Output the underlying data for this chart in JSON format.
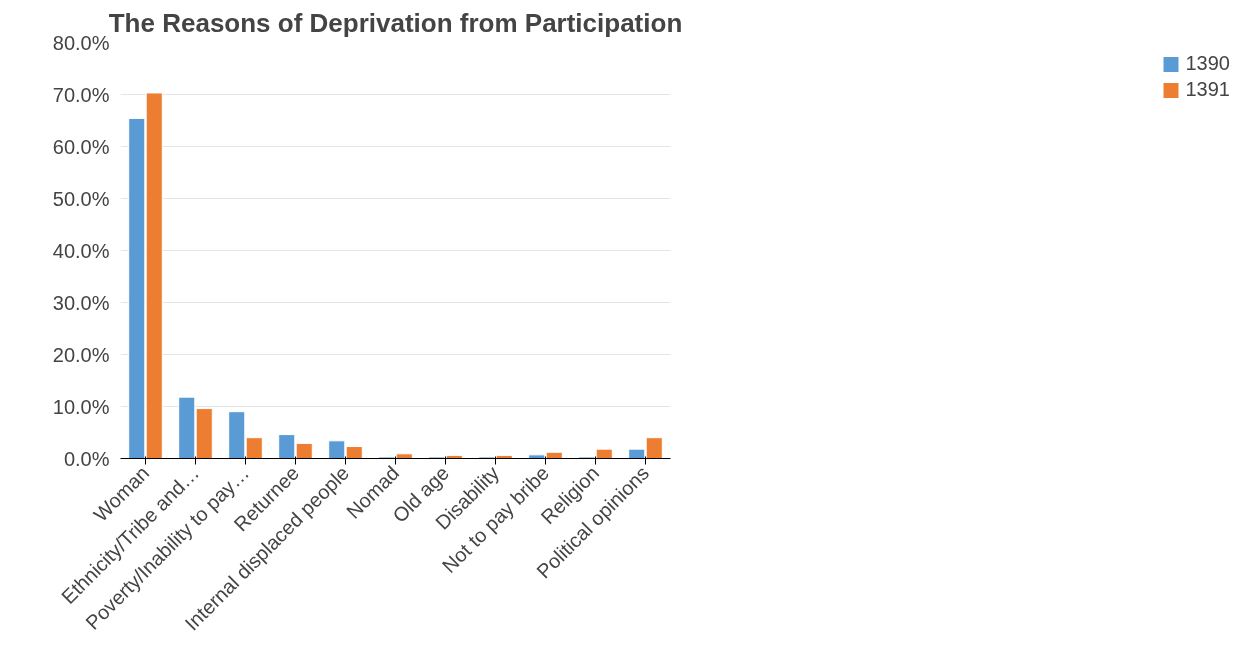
{
  "chart_data": {
    "type": "bar",
    "title": "The Reasons of Deprivation from Participation",
    "categories": [
      "Woman",
      "Ethnicity/Tribe and…",
      "Poverty/Inability to pay…",
      "Returnee",
      "Internal displaced people",
      "Nomad",
      "Old age",
      "Disability",
      "Not to pay bribe",
      "Religion",
      "Political opinions"
    ],
    "series": [
      {
        "name": "1390",
        "color": "#5b9bd5",
        "values": [
          65.4,
          11.8,
          9.0,
          4.6,
          3.4,
          0.3,
          0.3,
          0.3,
          0.7,
          0.3,
          1.8
        ]
      },
      {
        "name": "1391",
        "color": "#ed7d31",
        "values": [
          70.3,
          9.6,
          4.0,
          2.9,
          2.3,
          0.9,
          0.6,
          0.6,
          1.2,
          1.8,
          4.0
        ]
      }
    ],
    "ylim": [
      0,
      80
    ],
    "yticks": [
      {
        "value": 0,
        "label": "0.0%"
      },
      {
        "value": 10,
        "label": "10.0%"
      },
      {
        "value": 20,
        "label": "20.0%"
      },
      {
        "value": 30,
        "label": "30.0%"
      },
      {
        "value": 40,
        "label": "40.0%"
      },
      {
        "value": 50,
        "label": "50.0%"
      },
      {
        "value": 60,
        "label": "60.0%"
      },
      {
        "value": 70,
        "label": "70.0%"
      },
      {
        "value": 80,
        "label": "80.0%"
      }
    ],
    "grid": "y",
    "legend": "right"
  }
}
